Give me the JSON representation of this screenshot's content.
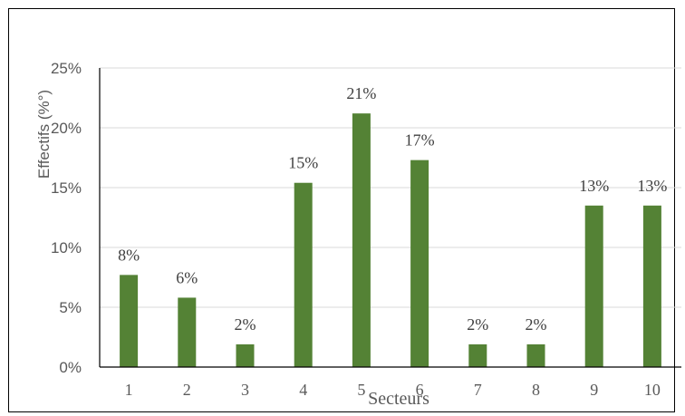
{
  "chart_data": {
    "type": "bar",
    "title": "",
    "xlabel": "Secteurs",
    "ylabel": "Effectifs (%°)",
    "categories": [
      "1",
      "2",
      "3",
      "4",
      "5",
      "6",
      "7",
      "8",
      "9",
      "10"
    ],
    "values": [
      7.7,
      5.8,
      1.9,
      15.4,
      21.2,
      17.3,
      1.9,
      1.9,
      13.5,
      13.5
    ],
    "data_labels": [
      "8%",
      "6%",
      "2%",
      "15%",
      "21%",
      "17%",
      "2%",
      "2%",
      "13%",
      "13%"
    ],
    "ylim": [
      0,
      25
    ],
    "yticks": [
      0,
      5,
      10,
      15,
      20,
      25
    ],
    "ytick_labels": [
      "0%",
      "5%",
      "10%",
      "15%",
      "20%",
      "25%"
    ],
    "grid": true,
    "legend": "none",
    "bar_color": "#548235",
    "grid_color": "#d9d9d9"
  }
}
